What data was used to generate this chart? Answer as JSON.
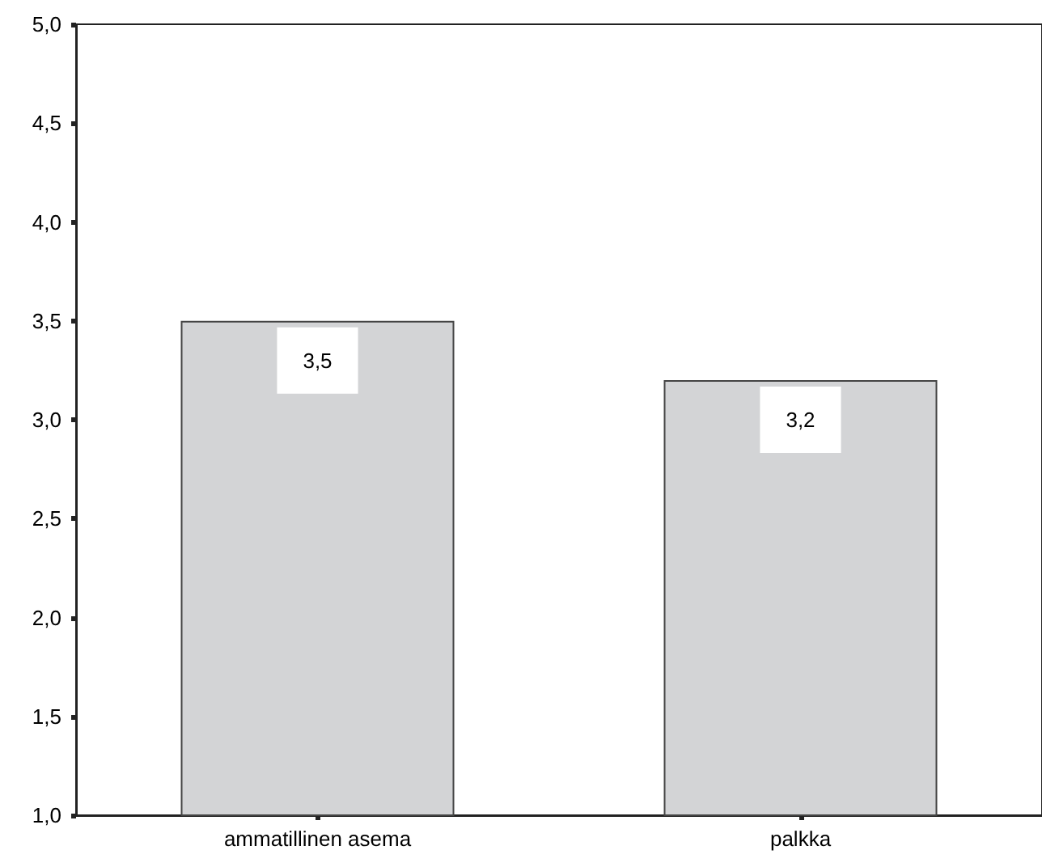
{
  "chart_data": {
    "type": "bar",
    "categories": [
      "ammatillinen asema",
      "palkka"
    ],
    "values": [
      3.5,
      3.2
    ],
    "value_labels": [
      "3,5",
      "3,2"
    ],
    "color": "#d3d4d6",
    "ylim": [
      1,
      5
    ],
    "yticks": [
      {
        "value": 1,
        "label": "1,0"
      },
      {
        "value": 1.5,
        "label": "1,5"
      },
      {
        "value": 2,
        "label": "2,0"
      },
      {
        "value": 2.5,
        "label": "2,5"
      },
      {
        "value": 3,
        "label": "3,0"
      },
      {
        "value": 3.5,
        "label": "3,5"
      },
      {
        "value": 4,
        "label": "4,0"
      },
      {
        "value": 4.5,
        "label": "4,5"
      },
      {
        "value": 5,
        "label": "5,0"
      }
    ]
  }
}
